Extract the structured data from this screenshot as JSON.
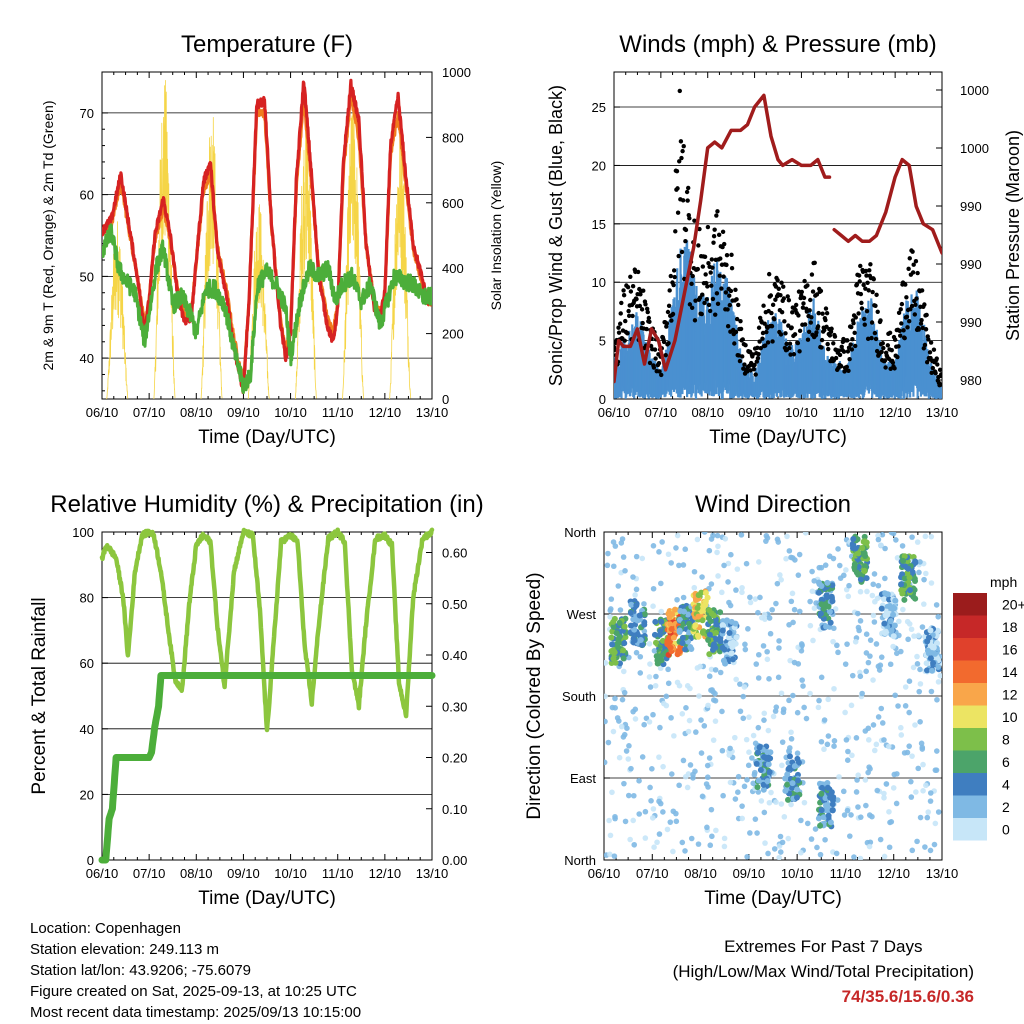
{
  "panels": {
    "temperature": {
      "title": "Temperature (F)",
      "ylabel_left": "2m & 9m T (Red, Orange) & 2m Td (Green)",
      "ylabel_right": "Solar Insolation (Yellow)",
      "xlabel": "Time (Day/UTC)"
    },
    "winds": {
      "title": "Winds (mph) & Pressure (mb)",
      "ylabel_left": "Sonic/Prop Wind & Gust (Blue, Black)",
      "ylabel_right": "Station Pressure (Maroon)",
      "xlabel": "Time (Day/UTC)"
    },
    "humidity": {
      "title": "Relative Humidity (%) & Precipitation (in)",
      "ylabel_left": "Percent & Total Rainfall",
      "xlabel": "Time (Day/UTC)"
    },
    "direction": {
      "title": "Wind Direction",
      "ylabel_left": "Direction (Colored By Speed)",
      "xlabel": "Time (Day/UTC)",
      "legend_title": "mph"
    }
  },
  "info": {
    "location": "Location: Copenhagen",
    "elevation": "Station elevation: 249.113 m",
    "latlon": "Station lat/lon: 43.9206; -75.6079",
    "created": "Figure created on Sat, 2025-09-13, at 10:25 UTC",
    "recent": "Most recent data timestamp: 2025/09/13 10:15:00",
    "extremes_line1": "Extremes For Past 7 Days",
    "extremes_line2": "(High/Low/Max Wind/Total Precipitation)",
    "extremes_values": "74/35.6/15.6/0.36"
  },
  "chart_data": [
    {
      "type": "line",
      "title": "Temperature (F)",
      "xlabel": "Time (Day/UTC)",
      "ylabel": "2m & 9m T (Red, Orange) & 2m Td (Green)",
      "ylabel_right": "Solar Insolation (Yellow)",
      "x_ticks": [
        "06/10",
        "07/10",
        "08/10",
        "09/10",
        "10/10",
        "11/10",
        "12/10",
        "13/10"
      ],
      "xlim": [
        0,
        7
      ],
      "ylim": [
        35,
        75
      ],
      "y_ticks": [
        40,
        50,
        60,
        70
      ],
      "ylim_right": [
        0,
        1000
      ],
      "y_ticks_right": [
        0,
        200,
        400,
        600,
        800,
        1000
      ],
      "grid": true,
      "colors": {
        "t2m": "#d62222",
        "t9m": "#f07b1e",
        "td": "#4cae3a",
        "solar": "#f5d547"
      },
      "series": [
        {
          "name": "2m T",
          "color": "#d62222",
          "x": [
            0,
            0.2,
            0.4,
            0.55,
            0.75,
            0.9,
            1.0,
            1.12,
            1.3,
            1.45,
            1.6,
            1.75,
            1.9,
            2.0,
            2.15,
            2.3,
            2.45,
            2.65,
            2.78,
            2.9,
            3.0,
            3.12,
            3.28,
            3.45,
            3.6,
            3.78,
            3.9,
            4.0,
            4.12,
            4.28,
            4.45,
            4.6,
            4.78,
            4.9,
            5.0,
            5.12,
            5.28,
            5.45,
            5.6,
            5.78,
            5.9,
            6.0,
            6.12,
            6.28,
            6.45,
            6.6,
            6.78,
            6.9,
            7.0
          ],
          "y": [
            55.5,
            57,
            62.5,
            57,
            50,
            43.5,
            47,
            55,
            59.5,
            55,
            48,
            44.5,
            45,
            52,
            61.5,
            64,
            53,
            47.5,
            42,
            38.5,
            36,
            47,
            71,
            71.5,
            56,
            44.5,
            40,
            43,
            61.5,
            74,
            62,
            50,
            44,
            42,
            46,
            64,
            73.5,
            69,
            54,
            46,
            45,
            48,
            66,
            72,
            62,
            54,
            50,
            47,
            47
          ]
        },
        {
          "name": "9m T",
          "color": "#f07b1e",
          "x": [
            0,
            0.2,
            0.4,
            0.55,
            0.75,
            0.9,
            1.0,
            1.12,
            1.3,
            1.45,
            1.6,
            1.75,
            1.9,
            2.0,
            2.15,
            2.3,
            2.45,
            2.65,
            2.78,
            2.9,
            3.0,
            3.12,
            3.28,
            3.45,
            3.6,
            3.78,
            3.9,
            4.0,
            4.12,
            4.28,
            4.45,
            4.6,
            4.78,
            4.9,
            5.0,
            5.12,
            5.28,
            5.45,
            5.6,
            5.78,
            5.9,
            6.0,
            6.12,
            6.28,
            6.45,
            6.6,
            6.78,
            6.9,
            7.0
          ],
          "y": [
            55.5,
            56.5,
            61.5,
            56.5,
            50,
            44,
            47,
            54.5,
            58.5,
            54.5,
            48.5,
            45,
            45.5,
            52,
            60.5,
            62.5,
            53.5,
            48,
            43,
            39.5,
            37,
            47,
            70,
            70,
            56,
            45,
            41,
            43.5,
            60.5,
            72,
            61,
            50.5,
            45,
            43,
            46.5,
            63,
            72,
            67,
            54,
            46.5,
            45.5,
            48,
            65,
            70,
            61,
            53.5,
            49.5,
            47,
            47
          ]
        },
        {
          "name": "2m Td",
          "color": "#4cae3a",
          "x": [
            0,
            0.2,
            0.35,
            0.5,
            0.7,
            0.9,
            1.0,
            1.15,
            1.3,
            1.5,
            1.7,
            1.9,
            2.0,
            2.2,
            2.4,
            2.6,
            2.8,
            3.0,
            3.15,
            3.3,
            3.5,
            3.7,
            3.9,
            4.0,
            4.2,
            4.4,
            4.6,
            4.8,
            4.95,
            5.1,
            5.3,
            5.5,
            5.7,
            5.9,
            6.0,
            6.2,
            6.4,
            6.6,
            6.8,
            7.0
          ],
          "y": [
            53,
            55.5,
            51,
            49.5,
            48,
            42,
            45.5,
            51,
            53.5,
            46.5,
            47.5,
            45,
            43,
            48.5,
            48.5,
            46.5,
            41,
            36.5,
            38,
            49,
            50.5,
            49,
            46,
            40,
            47,
            51,
            50,
            51,
            47,
            49,
            50,
            47,
            49,
            44,
            46,
            50,
            49.5,
            49,
            47.5,
            47.5
          ]
        },
        {
          "name": "Solar Insolation",
          "color": "#f5d547",
          "axis": "right",
          "days": [
            0,
            1,
            2,
            3,
            4,
            5,
            6
          ],
          "peaks": [
            560,
            1000,
            900,
            620,
            880,
            930,
            860
          ]
        }
      ]
    },
    {
      "type": "scatter",
      "title": "Winds (mph) & Pressure (mb)",
      "xlabel": "Time (Day/UTC)",
      "ylabel": "Sonic/Prop Wind & Gust (Blue, Black)",
      "ylabel_right": "Station Pressure (Maroon)",
      "x_ticks": [
        "06/10",
        "07/10",
        "08/10",
        "09/10",
        "10/10",
        "11/10",
        "12/10",
        "13/10"
      ],
      "xlim": [
        0,
        7
      ],
      "ylim": [
        0,
        28
      ],
      "y_ticks": [
        0,
        5,
        10,
        15,
        20,
        25
      ],
      "y_ticks_right_labels": [
        "980",
        "990",
        "990",
        "990",
        "1000",
        "1000"
      ],
      "grid": true,
      "colors": {
        "wind": "#4a90d0",
        "gust": "#000000",
        "pressure": "#a01c1c"
      },
      "series": [
        {
          "name": "Wind envelope",
          "color": "#4a90d0",
          "x": [
            0,
            0.25,
            0.5,
            0.75,
            1.0,
            1.25,
            1.5,
            1.75,
            2.0,
            2.25,
            2.5,
            2.75,
            3.0,
            3.25,
            3.5,
            3.75,
            4.0,
            4.25,
            4.5,
            4.75,
            5.0,
            5.25,
            5.5,
            5.75,
            6.0,
            6.25,
            6.5,
            6.75,
            7.0
          ],
          "y": [
            3,
            5,
            7,
            4,
            2,
            8,
            14,
            9,
            9,
            12,
            8,
            3,
            2,
            6,
            7,
            4,
            5,
            8,
            4,
            3,
            3,
            7,
            8,
            3,
            3,
            8,
            9,
            3,
            1
          ]
        },
        {
          "name": "Gust envelope",
          "color": "#000000",
          "x": [
            0,
            0.25,
            0.5,
            0.75,
            1.0,
            1.25,
            1.4,
            1.55,
            1.75,
            2.0,
            2.25,
            2.5,
            2.75,
            3.0,
            3.25,
            3.5,
            3.75,
            4.0,
            4.25,
            4.5,
            4.75,
            5.0,
            5.25,
            5.5,
            5.75,
            6.0,
            6.25,
            6.5,
            6.75,
            7.0
          ],
          "y": [
            5,
            10,
            11,
            7,
            4,
            13,
            26,
            20,
            14,
            14,
            16,
            12,
            5,
            4,
            10,
            11,
            8,
            9,
            12,
            8,
            5,
            5,
            12,
            11,
            6,
            5,
            13,
            11,
            5,
            2
          ]
        },
        {
          "name": "Station Pressure",
          "color": "#a01c1c",
          "x": [
            0,
            0.1,
            0.2,
            0.35,
            0.5,
            0.65,
            0.8,
            0.95,
            1.1,
            1.3,
            1.5,
            1.7,
            1.85,
            2.0,
            2.15,
            2.3,
            2.5,
            2.7,
            2.85,
            3.0,
            3.2,
            3.35,
            3.5,
            3.6,
            3.8,
            4.0,
            4.2,
            4.35,
            4.5,
            4.6
          ],
          "y": [
            1.5,
            5,
            4.5,
            4.5,
            6,
            3,
            6,
            5,
            2.5,
            5,
            9,
            13,
            17,
            21.5,
            22,
            21.5,
            23,
            23,
            23.5,
            25,
            26,
            22.5,
            20.5,
            20,
            20.5,
            20,
            20,
            20.5,
            19,
            19
          ]
        },
        {
          "name": "Station Pressure (cont.)",
          "color": "#a01c1c",
          "x": [
            4.7,
            4.85,
            5.0,
            5.15,
            5.3,
            5.45,
            5.6,
            5.8,
            6.0,
            6.15,
            6.3,
            6.45,
            6.6,
            6.8,
            7.0
          ],
          "y": [
            14.5,
            14,
            13.5,
            14,
            13.5,
            13.5,
            14,
            16,
            19,
            20.5,
            20,
            16.5,
            15,
            14.5,
            12.5
          ]
        }
      ]
    },
    {
      "type": "line",
      "title": "Relative Humidity (%) & Precipitation (in)",
      "xlabel": "Time (Day/UTC)",
      "ylabel": "Percent & Total Rainfall",
      "x_ticks": [
        "06/10",
        "07/10",
        "08/10",
        "09/10",
        "10/10",
        "11/10",
        "12/10",
        "13/10"
      ],
      "xlim": [
        0,
        7
      ],
      "ylim": [
        0,
        100
      ],
      "y_ticks": [
        0,
        20,
        40,
        60,
        80,
        100
      ],
      "ylim_right": [
        0,
        0.64
      ],
      "y_ticks_right": [
        0.0,
        0.1,
        0.2,
        0.3,
        0.4,
        0.5,
        0.6
      ],
      "grid": true,
      "colors": {
        "rh": "#8cc63e",
        "precip": "#4cae3a"
      },
      "series": [
        {
          "name": "Relative Humidity",
          "color": "#8cc63e",
          "x": [
            0,
            0.1,
            0.3,
            0.45,
            0.55,
            0.7,
            0.85,
            1.0,
            1.1,
            1.25,
            1.4,
            1.55,
            1.7,
            1.85,
            2.0,
            2.15,
            2.3,
            2.45,
            2.6,
            2.8,
            3.0,
            3.2,
            3.35,
            3.5,
            3.65,
            3.8,
            4.0,
            4.15,
            4.3,
            4.45,
            4.6,
            4.8,
            5.0,
            5.15,
            5.3,
            5.45,
            5.6,
            5.8,
            6.0,
            6.15,
            6.3,
            6.45,
            6.6,
            6.8,
            7.0
          ],
          "y": [
            92,
            96,
            92,
            80,
            62,
            88,
            99,
            100,
            99,
            88,
            71,
            55,
            52,
            78,
            96,
            99,
            97,
            71,
            53,
            88,
            100,
            99,
            76,
            39,
            68,
            97,
            99,
            97,
            65,
            48,
            72,
            98,
            100,
            97,
            58,
            47,
            72,
            98,
            99,
            96,
            54,
            44,
            80,
            98,
            100
          ]
        },
        {
          "name": "Total Precipitation",
          "color": "#4cae3a",
          "axis": "right",
          "x": [
            0,
            0.08,
            0.15,
            0.22,
            0.3,
            0.4,
            0.5,
            0.7,
            0.9,
            1.0,
            1.05,
            1.12,
            1.2,
            1.25,
            1.3,
            2.0,
            3.0,
            4.0,
            5.0,
            6.0,
            7.0
          ],
          "y": [
            0,
            0,
            0.08,
            0.1,
            0.2,
            0.2,
            0.2,
            0.2,
            0.2,
            0.2,
            0.21,
            0.26,
            0.3,
            0.36,
            0.36,
            0.36,
            0.36,
            0.36,
            0.36,
            0.36,
            0.36
          ]
        }
      ]
    },
    {
      "type": "scatter",
      "title": "Wind Direction",
      "xlabel": "Time (Day/UTC)",
      "ylabel": "Direction (Colored By Speed)",
      "x_ticks": [
        "06/10",
        "07/10",
        "08/10",
        "09/10",
        "10/10",
        "11/10",
        "12/10",
        "13/10"
      ],
      "xlim": [
        0,
        7
      ],
      "ylim": [
        0,
        360
      ],
      "y_tick_values": [
        0,
        90,
        180,
        270,
        360
      ],
      "y_tick_labels": [
        "North",
        "East",
        "South",
        "West",
        "North"
      ],
      "grid": true,
      "legend": {
        "title": "mph",
        "placement": "right",
        "labels": [
          "20+",
          "18",
          "16",
          "14",
          "12",
          "10",
          "8",
          "6",
          "4",
          "2",
          "0"
        ],
        "colors": [
          "#9b1c1c",
          "#c62828",
          "#e0412c",
          "#f26a2e",
          "#f9a64a",
          "#ece463",
          "#7dbf4a",
          "#4ca46a",
          "#3f7ec0",
          "#7fb9e4",
          "#c7e6f8"
        ]
      },
      "clusters": [
        {
          "x": 0.3,
          "dir": 240,
          "speed": 6
        },
        {
          "x": 0.7,
          "dir": 260,
          "speed": 4
        },
        {
          "x": 1.2,
          "dir": 240,
          "speed": 6
        },
        {
          "x": 1.45,
          "dir": 250,
          "speed": 13
        },
        {
          "x": 1.7,
          "dir": 255,
          "speed": 4
        },
        {
          "x": 2.0,
          "dir": 270,
          "speed": 10
        },
        {
          "x": 2.3,
          "dir": 250,
          "speed": 6
        },
        {
          "x": 2.6,
          "dir": 240,
          "speed": 2
        },
        {
          "x": 3.3,
          "dir": 100,
          "speed": 4
        },
        {
          "x": 3.9,
          "dir": 90,
          "speed": 4
        },
        {
          "x": 4.6,
          "dir": 60,
          "speed": 4
        },
        {
          "x": 4.6,
          "dir": 280,
          "speed": 4
        },
        {
          "x": 5.3,
          "dir": 330,
          "speed": 6
        },
        {
          "x": 5.9,
          "dir": 270,
          "speed": 2
        },
        {
          "x": 6.3,
          "dir": 310,
          "speed": 6
        },
        {
          "x": 6.8,
          "dir": 230,
          "speed": 2
        }
      ]
    }
  ]
}
